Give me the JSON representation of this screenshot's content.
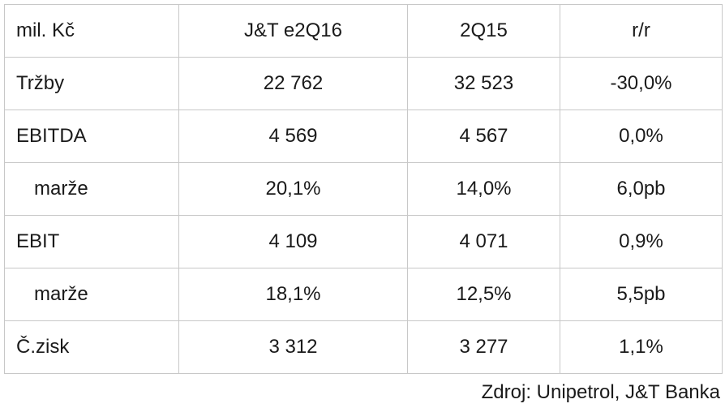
{
  "table": {
    "headers": [
      "mil. Kč",
      "J&T e2Q16",
      "2Q15",
      "r/r"
    ],
    "rows": [
      {
        "label": "Tržby",
        "indent": false,
        "values": [
          "22 762",
          "32 523",
          "-30,0%"
        ]
      },
      {
        "label": "EBITDA",
        "indent": false,
        "values": [
          "4 569",
          "4 567",
          "0,0%"
        ]
      },
      {
        "label": "marže",
        "indent": true,
        "values": [
          "20,1%",
          "14,0%",
          "6,0pb"
        ]
      },
      {
        "label": "EBIT",
        "indent": false,
        "values": [
          "4 109",
          "4 071",
          "0,9%"
        ]
      },
      {
        "label": "marže",
        "indent": true,
        "values": [
          "18,1%",
          "12,5%",
          "5,5pb"
        ]
      },
      {
        "label": "Č.zisk",
        "indent": false,
        "values": [
          "3 312",
          "3 277",
          "1,1%"
        ]
      }
    ]
  },
  "source": "Zdroj: Unipetrol, J&T Banka"
}
